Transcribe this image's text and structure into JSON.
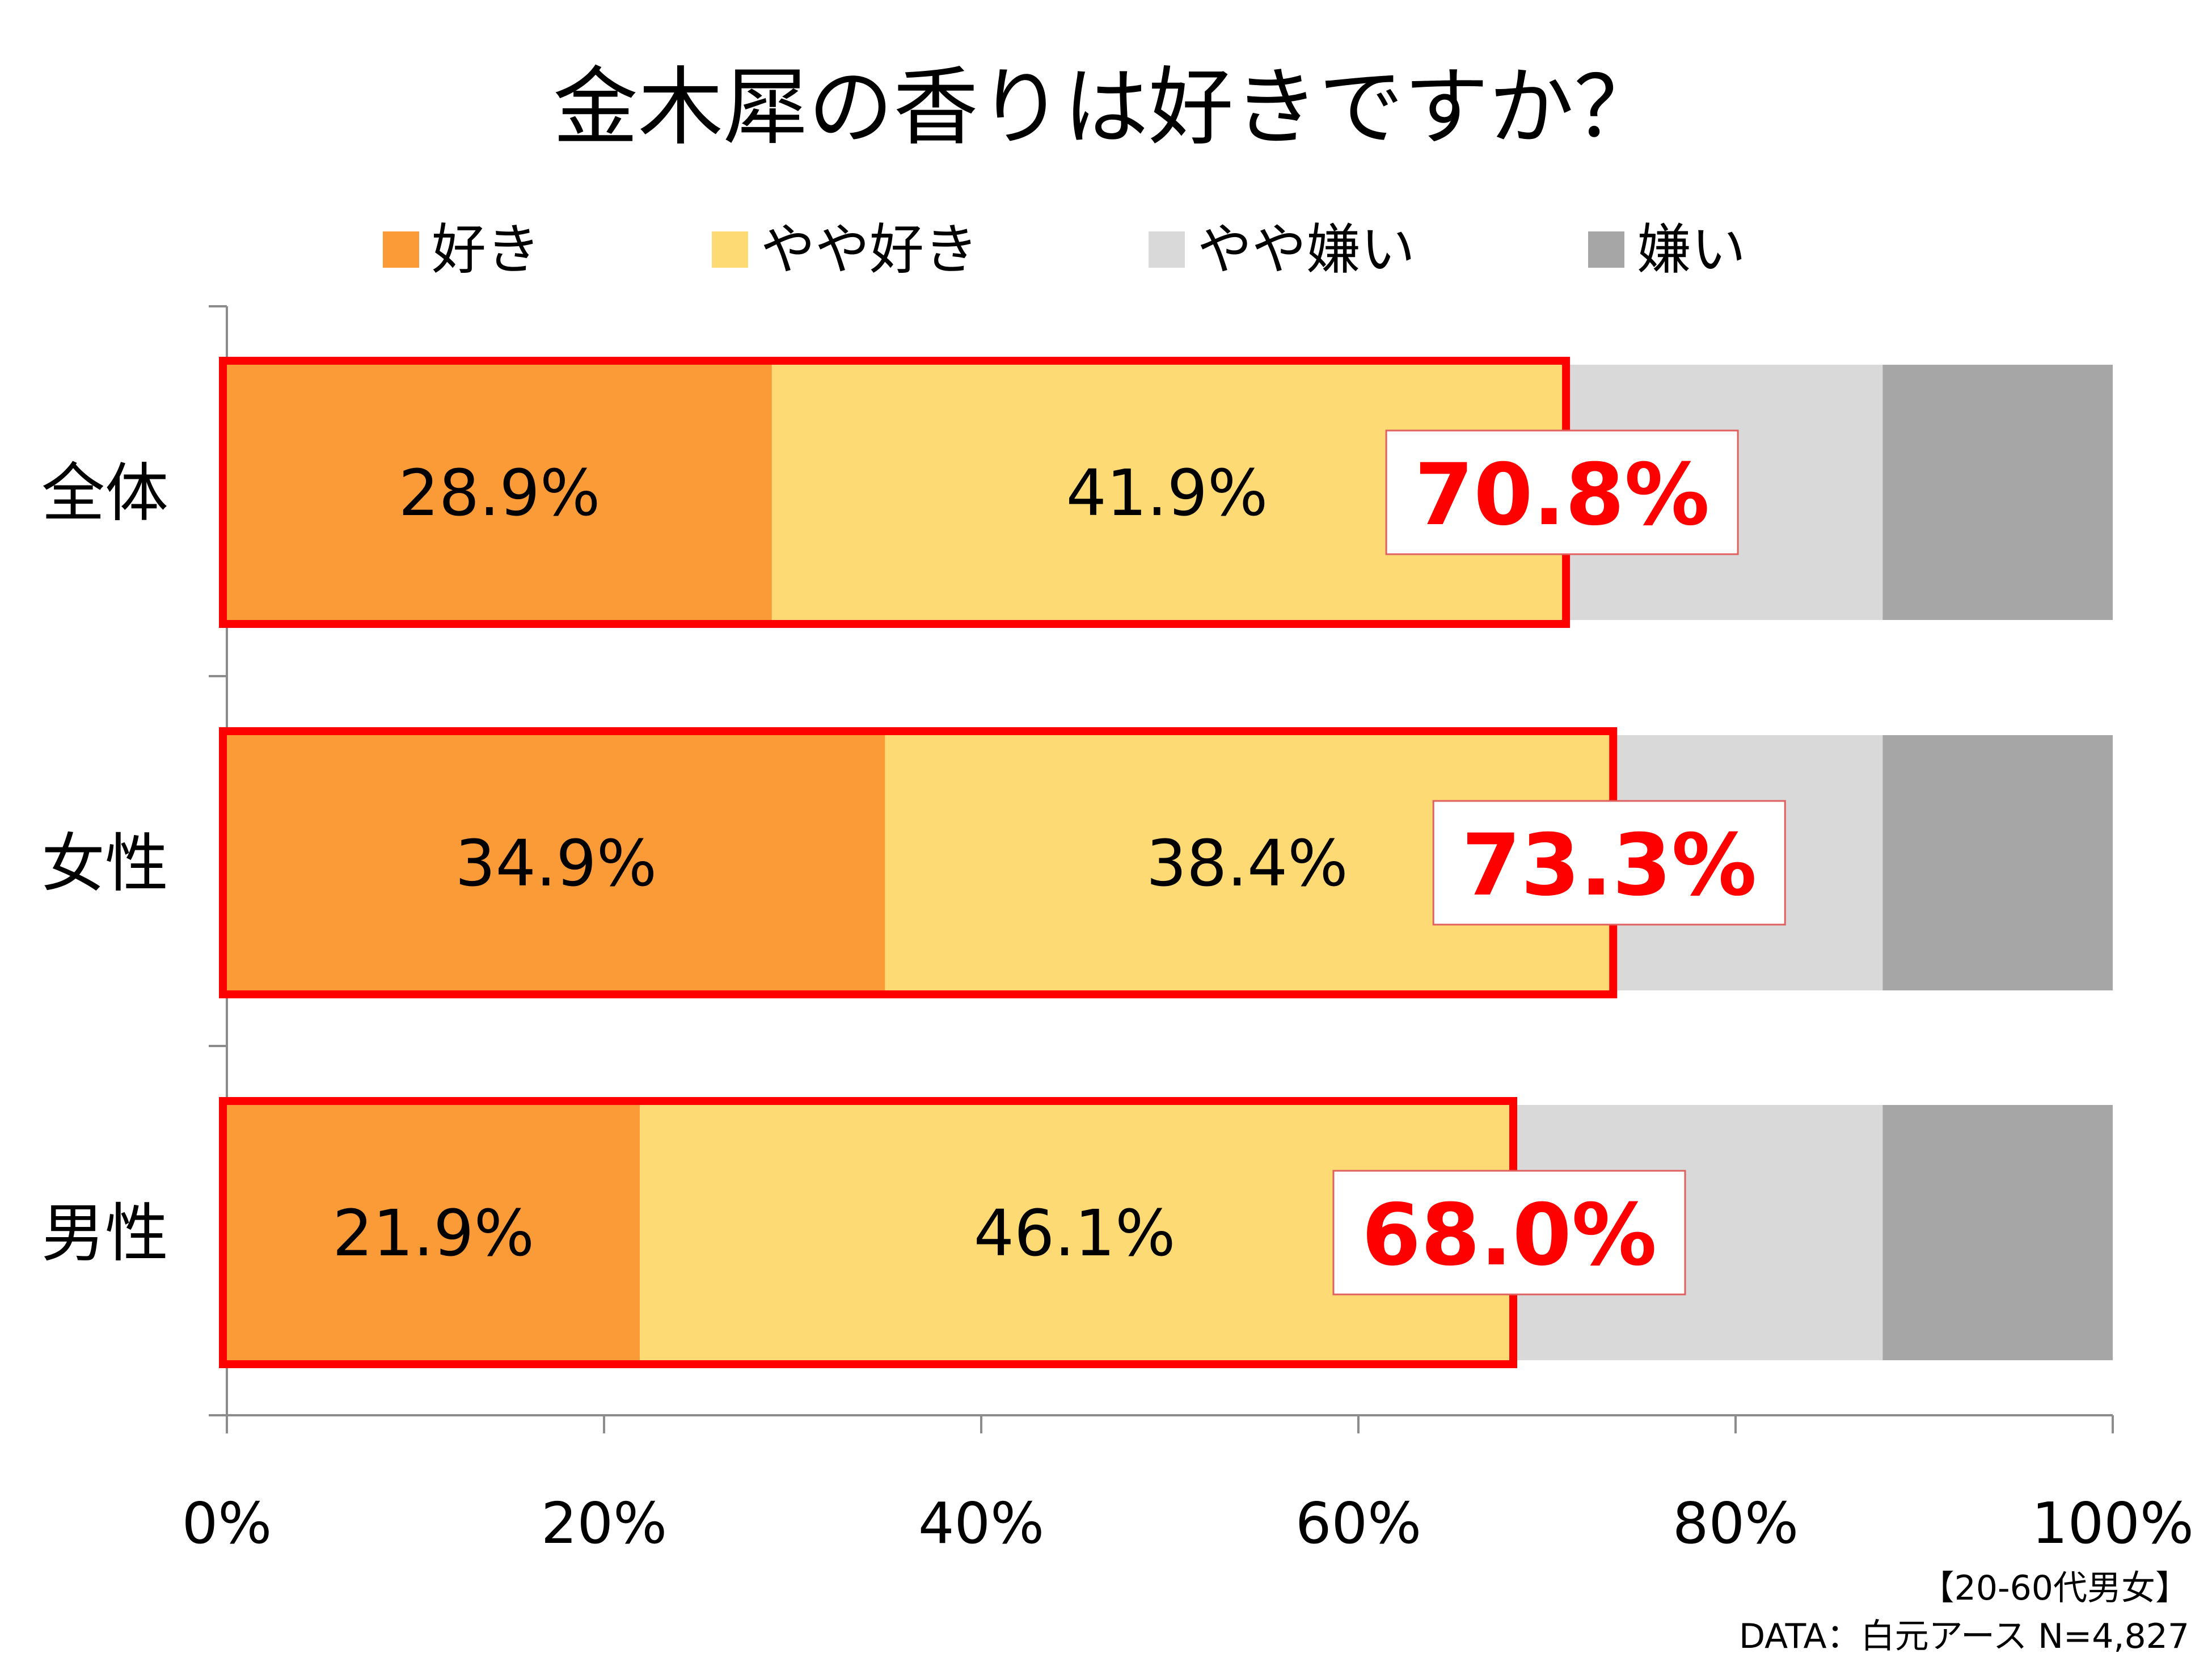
{
  "chart_data": {
    "type": "bar",
    "orientation": "horizontal",
    "stacked": true,
    "title": "金木犀の香りは好きですか？",
    "categories": [
      "全体",
      "女性",
      "男性"
    ],
    "series": [
      {
        "name": "好き",
        "color": "#FB9B38",
        "values": [
          28.9,
          34.9,
          21.9
        ],
        "labels": [
          "28.9%",
          "34.9%",
          "21.9%"
        ]
      },
      {
        "name": "やや好き",
        "color": "#FDDA74",
        "values": [
          41.9,
          38.4,
          46.1
        ],
        "labels": [
          "41.9%",
          "38.4%",
          "46.1%"
        ]
      },
      {
        "name": "やや嫌い",
        "color": "#D9D9D9",
        "values": [
          17.0,
          14.5,
          19.8
        ]
      },
      {
        "name": "嫌い",
        "color": "#A6A6A6",
        "values": [
          12.2,
          12.2,
          12.2
        ]
      }
    ],
    "totals": {
      "values": [
        70.8,
        73.3,
        68.0
      ],
      "labels": [
        "70.8%",
        "73.3%",
        "68.0%"
      ],
      "highlight_color": "#FF0000"
    },
    "xlim": [
      0,
      100
    ],
    "xticks": [
      0,
      20,
      40,
      60,
      80,
      100
    ],
    "xtick_labels": [
      "0%",
      "20%",
      "40%",
      "60%",
      "80%",
      "100%"
    ],
    "legend_position": "top",
    "grid": false
  },
  "footnote": {
    "line1": "【20-60代男女】",
    "line2": "DATA：白元アース  N=4,827"
  }
}
